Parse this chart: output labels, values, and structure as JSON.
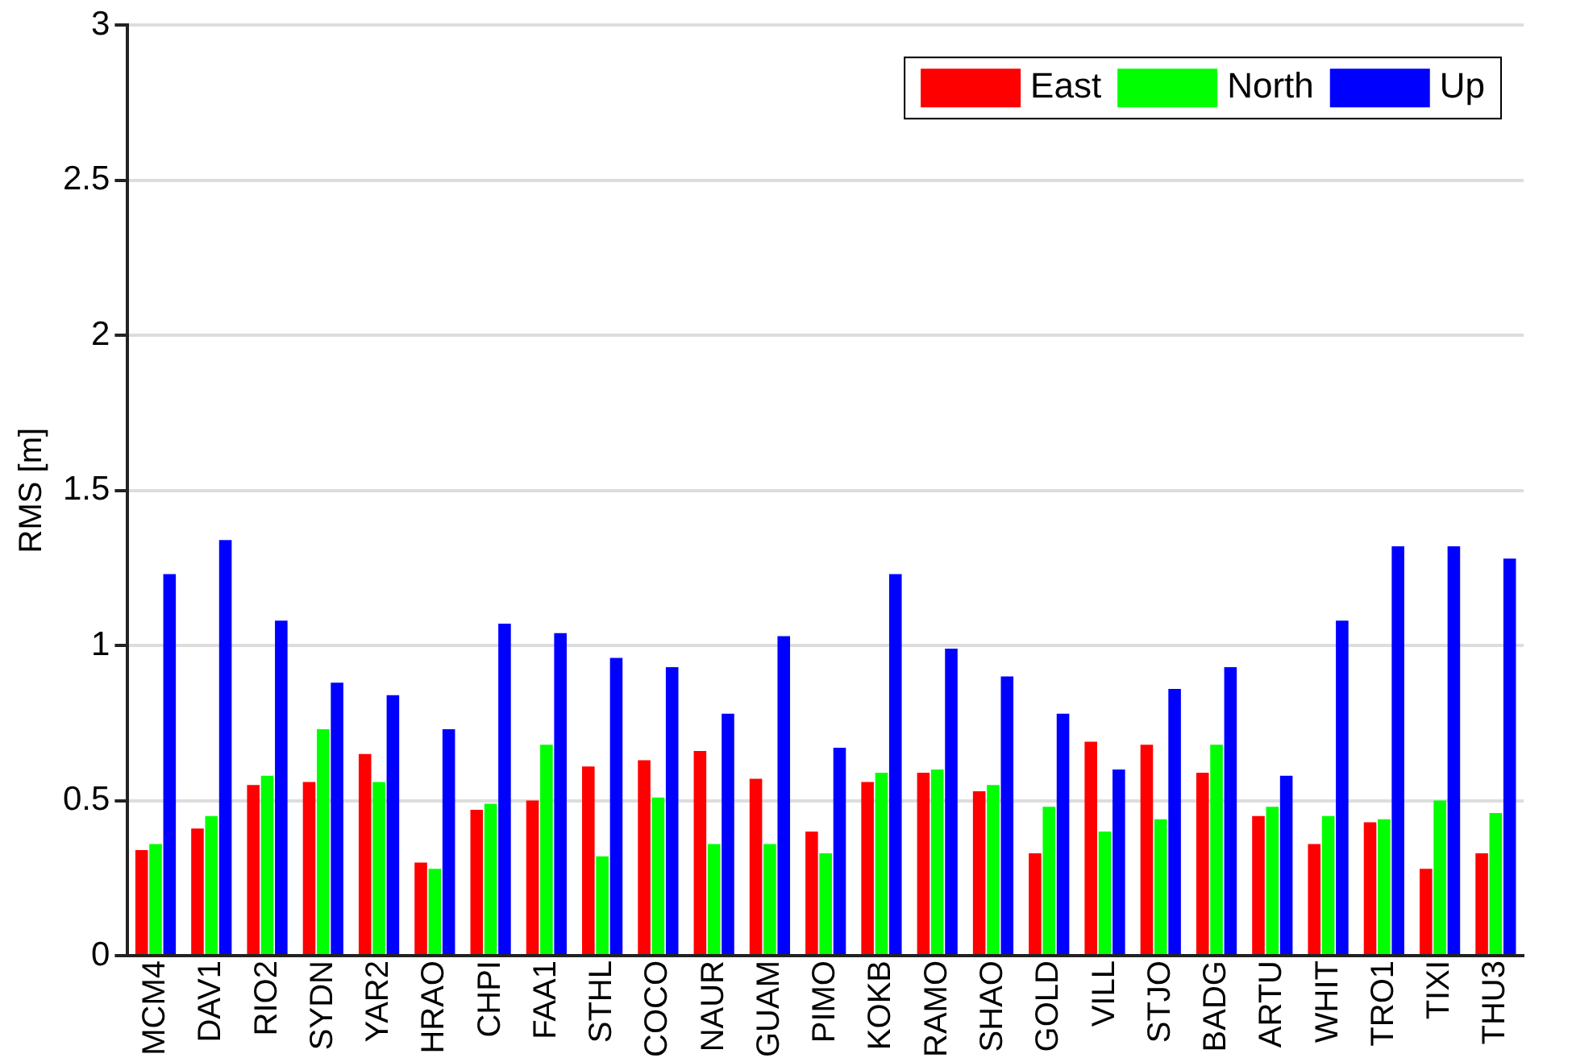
{
  "chart_data": {
    "type": "bar",
    "ylabel": "RMS [m]",
    "categories": [
      "MCM4",
      "DAV1",
      "RIO2",
      "SYDN",
      "YAR2",
      "HRAO",
      "CHPI",
      "FAA1",
      "STHL",
      "COCO",
      "NAUR",
      "GUAM",
      "PIMO",
      "KOKB",
      "RAMO",
      "SHAO",
      "GOLD",
      "VILL",
      "STJO",
      "BADG",
      "ARTU",
      "WHIT",
      "TRO1",
      "TIXI",
      "THU3"
    ],
    "series": [
      {
        "name": "East",
        "color": "#ff0000",
        "values": [
          0.34,
          0.41,
          0.55,
          0.56,
          0.65,
          0.3,
          0.47,
          0.5,
          0.61,
          0.63,
          0.66,
          0.57,
          0.4,
          0.56,
          0.59,
          0.53,
          0.33,
          0.69,
          0.68,
          0.59,
          0.45,
          0.36,
          0.43,
          0.28,
          0.33
        ]
      },
      {
        "name": "North",
        "color": "#00ff00",
        "values": [
          0.36,
          0.45,
          0.58,
          0.73,
          0.56,
          0.28,
          0.49,
          0.68,
          0.32,
          0.51,
          0.36,
          0.36,
          0.33,
          0.59,
          0.6,
          0.55,
          0.48,
          0.4,
          0.44,
          0.68,
          0.48,
          0.45,
          0.44,
          0.5,
          0.46
        ]
      },
      {
        "name": "Up",
        "color": "#0000ff",
        "values": [
          1.23,
          1.34,
          1.08,
          0.88,
          0.84,
          0.73,
          1.07,
          1.04,
          0.96,
          0.93,
          0.78,
          1.03,
          0.67,
          1.23,
          0.99,
          0.9,
          0.78,
          0.6,
          0.86,
          0.93,
          0.58,
          1.08,
          1.32,
          1.32,
          1.28
        ]
      }
    ],
    "ylim": [
      0,
      3
    ],
    "yticks": [
      0,
      0.5,
      1,
      1.5,
      2,
      2.5,
      3
    ],
    "grid": "y",
    "legend": "top right"
  }
}
